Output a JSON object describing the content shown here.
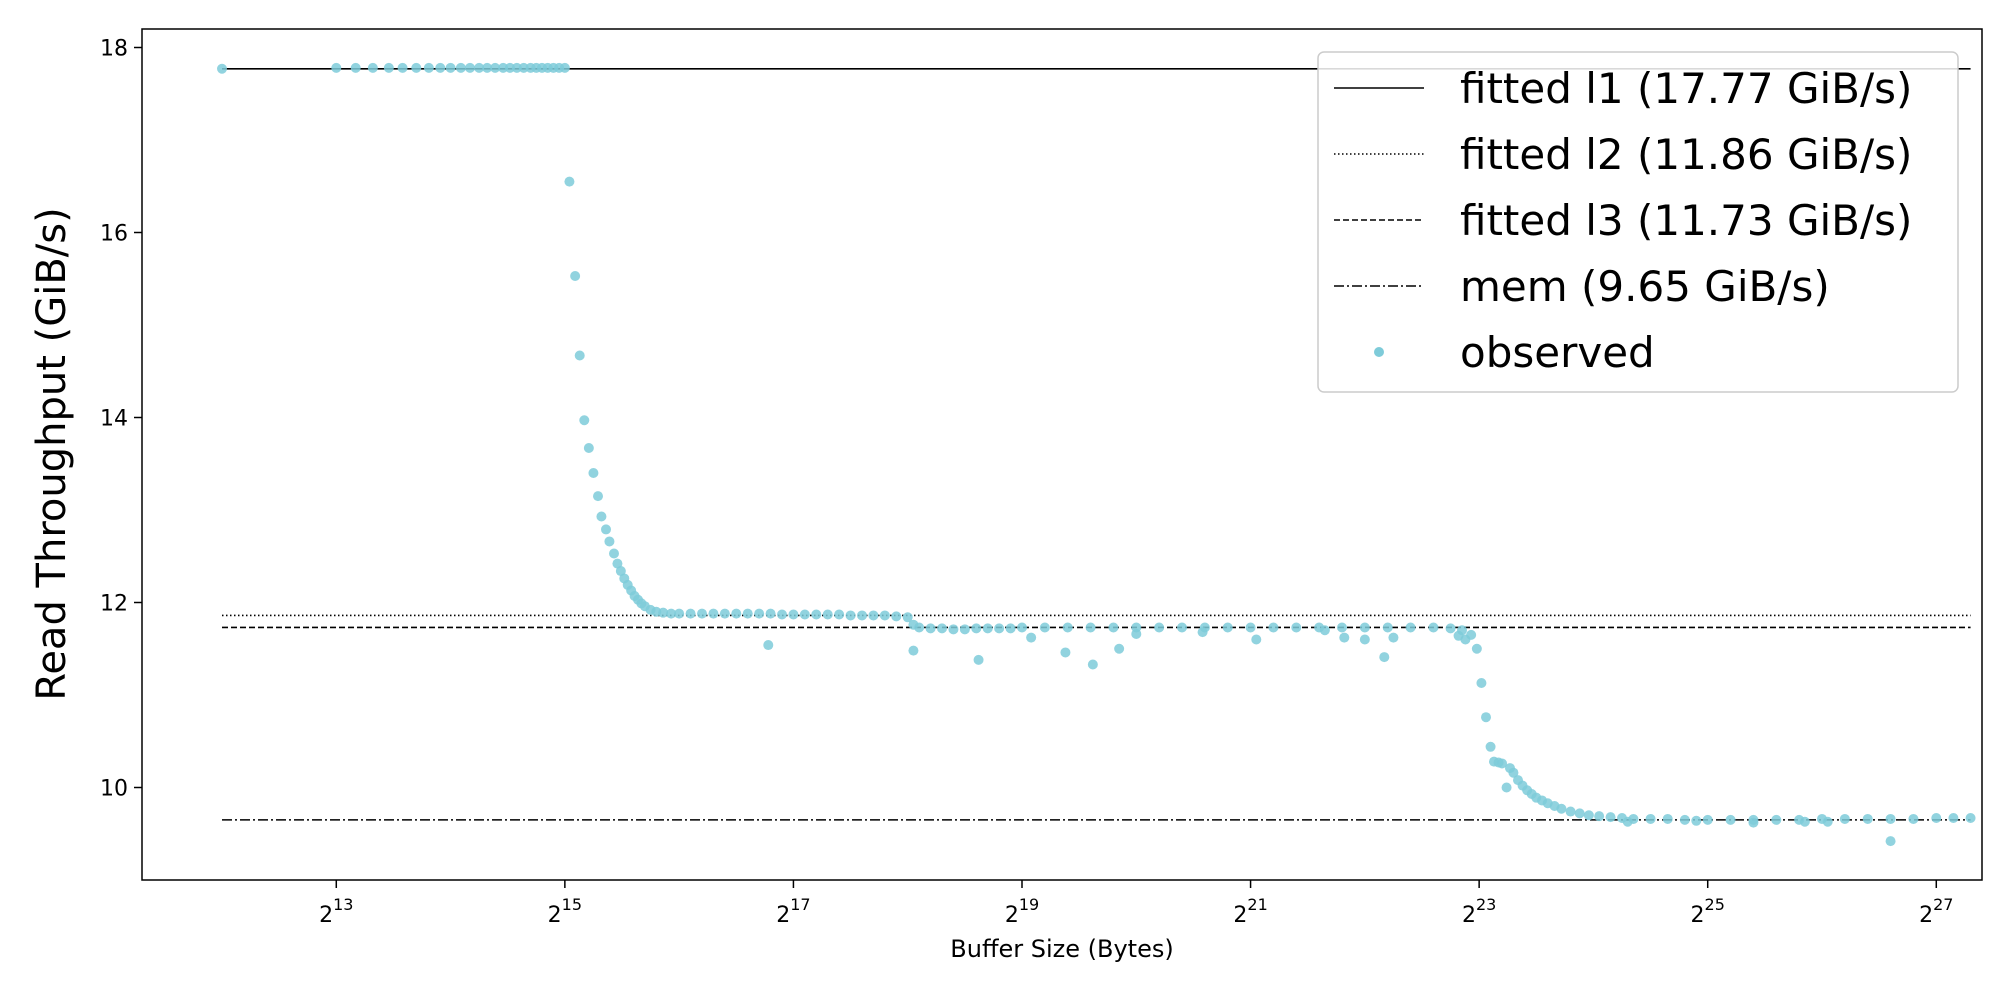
{
  "chart_data": {
    "type": "scatter",
    "xlabel": "Buffer Size (Bytes)",
    "ylabel": "Read Throughput (GiB/s)",
    "x_scale": "log2",
    "x_base": 2,
    "x_ticks": [
      13,
      15,
      17,
      19,
      21,
      23,
      25,
      27
    ],
    "x_tick_labels": [
      "13",
      "15",
      "17",
      "19",
      "21",
      "23",
      "25",
      "27"
    ],
    "xlim_exponent": [
      11.3,
      27.4
    ],
    "ylim": [
      9.0,
      18.2
    ],
    "y_ticks": [
      10,
      12,
      14,
      16,
      18
    ],
    "y_tick_labels": [
      "10",
      "12",
      "14",
      "16",
      "18"
    ],
    "legend_position": "upper right",
    "grid": false,
    "lines": [
      {
        "name": "fitted l1 (17.77 GiB/s)",
        "y": 17.77,
        "x_range_exponent": [
          12,
          27.3
        ],
        "style": "solid",
        "color": "#000000"
      },
      {
        "name": "fitted l2 (11.86 GiB/s)",
        "y": 11.86,
        "x_range_exponent": [
          12,
          27.3
        ],
        "style": "dotted",
        "color": "#000000"
      },
      {
        "name": "fitted l3 (11.73 GiB/s)",
        "y": 11.73,
        "x_range_exponent": [
          12,
          27.3
        ],
        "style": "dashed",
        "color": "#000000"
      },
      {
        "name": "mem (9.65 GiB/s)",
        "y": 9.65,
        "x_range_exponent": [
          12,
          27.3
        ],
        "style": "dashdot",
        "color": "#000000"
      }
    ],
    "observed": {
      "name": "observed",
      "color": "#7ecbd9",
      "points_exponent_value": [
        [
          12.0,
          17.77
        ],
        [
          13.0,
          17.78
        ],
        [
          13.17,
          17.78
        ],
        [
          13.32,
          17.78
        ],
        [
          13.46,
          17.78
        ],
        [
          13.58,
          17.78
        ],
        [
          13.7,
          17.78
        ],
        [
          13.81,
          17.78
        ],
        [
          13.91,
          17.78
        ],
        [
          14.0,
          17.78
        ],
        [
          14.09,
          17.78
        ],
        [
          14.17,
          17.78
        ],
        [
          14.25,
          17.78
        ],
        [
          14.32,
          17.78
        ],
        [
          14.39,
          17.78
        ],
        [
          14.46,
          17.78
        ],
        [
          14.52,
          17.78
        ],
        [
          14.58,
          17.78
        ],
        [
          14.64,
          17.78
        ],
        [
          14.7,
          17.78
        ],
        [
          14.75,
          17.78
        ],
        [
          14.8,
          17.78
        ],
        [
          14.85,
          17.78
        ],
        [
          14.9,
          17.78
        ],
        [
          14.95,
          17.78
        ],
        [
          15.0,
          17.78
        ],
        [
          15.04,
          16.55
        ],
        [
          15.09,
          15.53
        ],
        [
          15.13,
          14.67
        ],
        [
          15.17,
          13.97
        ],
        [
          15.21,
          13.67
        ],
        [
          15.25,
          13.4
        ],
        [
          15.29,
          13.15
        ],
        [
          15.32,
          12.93
        ],
        [
          15.36,
          12.79
        ],
        [
          15.39,
          12.66
        ],
        [
          15.43,
          12.53
        ],
        [
          15.46,
          12.42
        ],
        [
          15.49,
          12.34
        ],
        [
          15.52,
          12.26
        ],
        [
          15.55,
          12.19
        ],
        [
          15.58,
          12.13
        ],
        [
          15.61,
          12.07
        ],
        [
          15.64,
          12.03
        ],
        [
          15.67,
          11.99
        ],
        [
          15.7,
          11.96
        ],
        [
          15.75,
          11.92
        ],
        [
          15.8,
          11.9
        ],
        [
          15.86,
          11.89
        ],
        [
          15.93,
          11.88
        ],
        [
          16.0,
          11.88
        ],
        [
          16.1,
          11.88
        ],
        [
          16.2,
          11.88
        ],
        [
          16.3,
          11.88
        ],
        [
          16.4,
          11.88
        ],
        [
          16.5,
          11.88
        ],
        [
          16.6,
          11.88
        ],
        [
          16.7,
          11.88
        ],
        [
          16.8,
          11.88
        ],
        [
          16.9,
          11.87
        ],
        [
          17.0,
          11.87
        ],
        [
          17.1,
          11.87
        ],
        [
          17.2,
          11.87
        ],
        [
          17.3,
          11.87
        ],
        [
          17.4,
          11.87
        ],
        [
          17.5,
          11.86
        ],
        [
          17.6,
          11.86
        ],
        [
          17.7,
          11.86
        ],
        [
          17.8,
          11.86
        ],
        [
          17.9,
          11.85
        ],
        [
          18.0,
          11.84
        ],
        [
          18.05,
          11.76
        ],
        [
          18.1,
          11.73
        ],
        [
          18.2,
          11.72
        ],
        [
          18.3,
          11.72
        ],
        [
          18.4,
          11.71
        ],
        [
          18.5,
          11.71
        ],
        [
          18.6,
          11.72
        ],
        [
          18.7,
          11.72
        ],
        [
          18.8,
          11.72
        ],
        [
          18.9,
          11.72
        ],
        [
          19.0,
          11.73
        ],
        [
          19.2,
          11.73
        ],
        [
          19.4,
          11.73
        ],
        [
          19.6,
          11.73
        ],
        [
          19.8,
          11.73
        ],
        [
          20.0,
          11.73
        ],
        [
          20.2,
          11.73
        ],
        [
          20.4,
          11.73
        ],
        [
          20.6,
          11.73
        ],
        [
          20.8,
          11.73
        ],
        [
          21.0,
          11.73
        ],
        [
          21.2,
          11.73
        ],
        [
          21.4,
          11.73
        ],
        [
          21.6,
          11.73
        ],
        [
          21.8,
          11.73
        ],
        [
          22.0,
          11.73
        ],
        [
          22.2,
          11.73
        ],
        [
          22.4,
          11.73
        ],
        [
          22.6,
          11.73
        ],
        [
          22.75,
          11.72
        ],
        [
          22.85,
          11.7
        ],
        [
          16.78,
          11.54
        ],
        [
          18.05,
          11.48
        ],
        [
          18.62,
          11.38
        ],
        [
          19.08,
          11.62
        ],
        [
          19.38,
          11.46
        ],
        [
          19.62,
          11.33
        ],
        [
          19.85,
          11.5
        ],
        [
          20.0,
          11.66
        ],
        [
          20.58,
          11.68
        ],
        [
          21.05,
          11.6
        ],
        [
          21.65,
          11.7
        ],
        [
          21.82,
          11.62
        ],
        [
          22.0,
          11.6
        ],
        [
          22.17,
          11.41
        ],
        [
          22.25,
          11.62
        ],
        [
          22.82,
          11.64
        ],
        [
          22.88,
          11.6
        ],
        [
          22.93,
          11.65
        ],
        [
          22.98,
          11.5
        ],
        [
          23.02,
          11.13
        ],
        [
          23.06,
          10.76
        ],
        [
          23.1,
          10.44
        ],
        [
          23.13,
          10.28
        ],
        [
          23.17,
          10.27
        ],
        [
          23.2,
          10.26
        ],
        [
          23.24,
          10.0
        ],
        [
          23.27,
          10.21
        ],
        [
          23.3,
          10.16
        ],
        [
          23.34,
          10.08
        ],
        [
          23.38,
          10.02
        ],
        [
          23.42,
          9.97
        ],
        [
          23.46,
          9.93
        ],
        [
          23.5,
          9.89
        ],
        [
          23.55,
          9.86
        ],
        [
          23.6,
          9.83
        ],
        [
          23.66,
          9.8
        ],
        [
          23.72,
          9.77
        ],
        [
          23.8,
          9.74
        ],
        [
          23.88,
          9.72
        ],
        [
          23.96,
          9.7
        ],
        [
          24.05,
          9.69
        ],
        [
          24.15,
          9.68
        ],
        [
          24.25,
          9.67
        ],
        [
          24.35,
          9.66
        ],
        [
          24.5,
          9.66
        ],
        [
          24.65,
          9.66
        ],
        [
          24.8,
          9.65
        ],
        [
          25.0,
          9.65
        ],
        [
          25.2,
          9.65
        ],
        [
          25.4,
          9.65
        ],
        [
          25.6,
          9.65
        ],
        [
          25.8,
          9.65
        ],
        [
          26.0,
          9.66
        ],
        [
          26.2,
          9.66
        ],
        [
          26.4,
          9.66
        ],
        [
          26.6,
          9.66
        ],
        [
          26.8,
          9.66
        ],
        [
          27.0,
          9.67
        ],
        [
          27.15,
          9.67
        ],
        [
          27.3,
          9.67
        ],
        [
          24.3,
          9.63
        ],
        [
          24.9,
          9.64
        ],
        [
          25.4,
          9.62
        ],
        [
          25.85,
          9.63
        ],
        [
          26.05,
          9.63
        ],
        [
          26.6,
          9.42
        ]
      ]
    }
  }
}
